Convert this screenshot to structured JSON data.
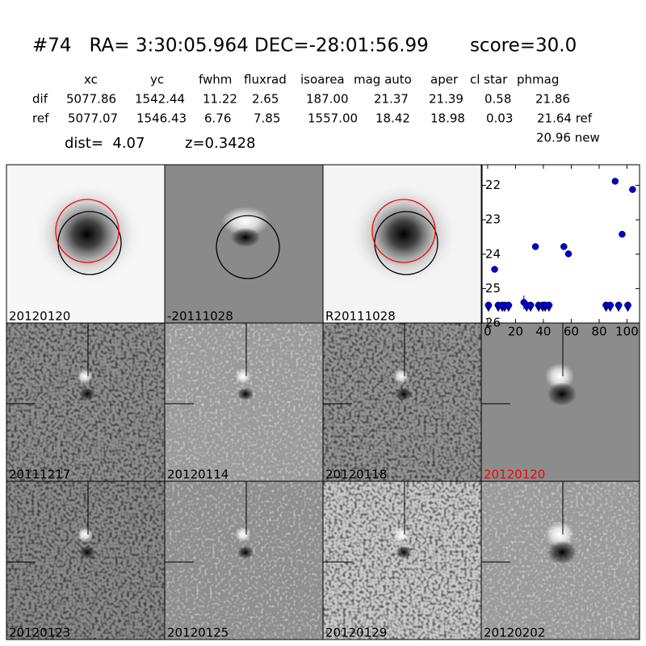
{
  "header": {
    "title": "#74   RA= 3:30:05.964 DEC=-28:01:56.99       score=30.0"
  },
  "table": {
    "columns": [
      "xc",
      "yc",
      "fwhm",
      "fluxrad",
      "isoarea",
      "mag auto",
      "aper",
      "cl star",
      "phmag"
    ],
    "rows": [
      {
        "label": "dif",
        "cells": [
          "5077.86",
          "1542.44",
          "11.22",
          "2.65",
          "187.00",
          "21.37",
          "21.39",
          "0.58",
          "21.86"
        ]
      },
      {
        "label": "ref",
        "cells": [
          "5077.07",
          "1546.43",
          "6.76",
          "7.85",
          "1557.00",
          "18.42",
          "18.98",
          "0.03",
          "21.64 ref"
        ]
      }
    ],
    "extra": "20.96 new"
  },
  "dist": "dist=  4.07",
  "z": "z=0.3428",
  "tiles": [
    {
      "label": "20120120",
      "color": "#000000"
    },
    {
      "label": "-20111028",
      "color": "#000000"
    },
    {
      "label": "R20111028",
      "color": "#000000"
    },
    {
      "label": "20111217",
      "color": "#000000"
    },
    {
      "label": "20120114",
      "color": "#000000"
    },
    {
      "label": "20120118",
      "color": "#000000"
    },
    {
      "label": "20120120",
      "color": "#ff0000"
    },
    {
      "label": "20120123",
      "color": "#000000"
    },
    {
      "label": "20120125",
      "color": "#000000"
    },
    {
      "label": "20120129",
      "color": "#000000"
    },
    {
      "label": "20120202",
      "color": "#000000"
    }
  ],
  "chart_data": {
    "type": "scatter",
    "xlim": [
      -4,
      109
    ],
    "xticks": [
      0,
      20,
      40,
      60,
      80,
      100
    ],
    "ylim": [
      26,
      21.4
    ],
    "yticks": [
      22,
      23,
      24,
      25,
      26
    ],
    "series": [
      {
        "color": "#0000cc",
        "marker": "o",
        "x": [
          5,
          34.3,
          54.7,
          58,
          26,
          91.5,
          96.5,
          104
        ],
        "values": [
          24.44,
          23.78,
          23.78,
          23.99,
          25.4,
          21.88,
          23.42,
          22.12
        ],
        "errors": [
          0.05,
          0.04,
          0.08,
          0.08,
          0.2,
          0.03,
          0.04,
          0.04
        ]
      },
      {
        "color": "#0000cc",
        "marker": "v",
        "x": [
          0.6,
          7.6,
          10.5,
          12.2,
          15,
          28,
          30.8,
          36.6,
          39.5,
          41.3,
          44,
          85,
          88,
          94,
          100.6
        ],
        "values": [
          25.55,
          25.55,
          25.55,
          25.55,
          25.55,
          25.55,
          25.55,
          25.55,
          25.55,
          25.55,
          25.55,
          25.55,
          25.55,
          25.55,
          25.55
        ]
      }
    ]
  }
}
